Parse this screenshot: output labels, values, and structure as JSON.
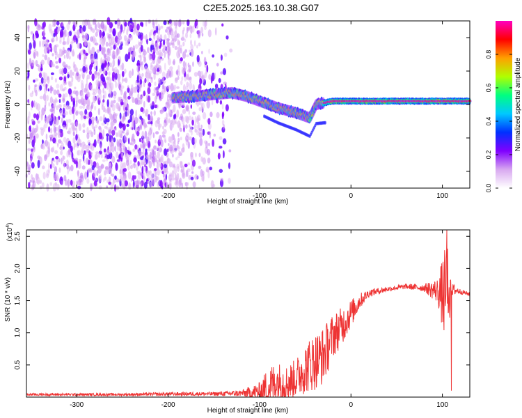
{
  "title": "C2E5.2025.163.10.38.G07",
  "chart_data": [
    {
      "type": "heatmap",
      "xlabel": "Height of straight line (km)",
      "ylabel": "Frequency (Hz)",
      "xlim": [
        -355,
        130
      ],
      "ylim": [
        -50,
        50
      ],
      "xticks": [
        -300,
        -200,
        -100,
        0,
        100
      ],
      "yticks": [
        -40,
        -20,
        0,
        20,
        40
      ],
      "colorbar": {
        "label": "Normalized spectral amplitude",
        "range": [
          0.0,
          1.0
        ],
        "ticks": [
          "0.0",
          "0.2",
          "0.4",
          "0.6",
          "0.8"
        ],
        "tick_values": [
          0.0,
          0.2,
          0.4,
          0.6,
          0.8
        ],
        "colormap": [
          "#ffffff",
          "#d8a8f0",
          "#8000ff",
          "#0030ff",
          "#00c8ff",
          "#00ff80",
          "#b0ff00",
          "#ffa000",
          "#ff0000",
          "#ff00c0"
        ]
      },
      "features": [
        {
          "name": "noise",
          "x_range": [
            -355,
            -150
          ],
          "frequency_range": [
            -50,
            50
          ],
          "amplitude": 0.15
        },
        {
          "name": "signal",
          "points": [
            [
              -195,
              4
            ],
            [
              -170,
              5
            ],
            [
              -150,
              6
            ],
            [
              -130,
              7
            ],
            [
              -115,
              5
            ],
            [
              -100,
              2
            ],
            [
              -80,
              -2
            ],
            [
              -60,
              -5
            ],
            [
              -45,
              -8
            ],
            [
              -38,
              0
            ],
            [
              -20,
              2
            ],
            [
              0,
              2
            ],
            [
              50,
              2
            ],
            [
              100,
              2
            ],
            [
              130,
              2
            ]
          ],
          "amplitude": 0.9
        }
      ]
    },
    {
      "type": "line",
      "xlabel": "Height of straight line (km)",
      "ylabel": "SNR (10 * v/v)",
      "yscale_label": "(x10",
      "yscale_exponent": "4",
      "yscale_suffix": ")",
      "xlim": [
        -355,
        130
      ],
      "ylim": [
        0,
        2.6
      ],
      "xticks": [
        -300,
        -200,
        -100,
        0,
        100
      ],
      "yticks": [
        0.5,
        1.0,
        1.5,
        2.0,
        2.5
      ],
      "ytick_labels": [
        "0.5",
        "1.0",
        "1.5",
        "2.0",
        "2.5"
      ],
      "color": "#ee3333",
      "envelope": {
        "x": [
          -355,
          -250,
          -180,
          -150,
          -120,
          -100,
          -90,
          -80,
          -70,
          -60,
          -50,
          -40,
          -30,
          -20,
          -10,
          0,
          10,
          20,
          40,
          60,
          80,
          95,
          105,
          110,
          120,
          130
        ],
        "y": [
          0.04,
          0.04,
          0.05,
          0.05,
          0.06,
          0.08,
          0.15,
          0.25,
          0.22,
          0.3,
          0.45,
          0.55,
          0.65,
          0.95,
          1.1,
          1.3,
          1.5,
          1.62,
          1.68,
          1.72,
          1.7,
          1.65,
          1.55,
          1.68,
          1.64,
          1.6
        ],
        "amp": [
          0.02,
          0.02,
          0.03,
          0.03,
          0.05,
          0.15,
          0.35,
          0.3,
          0.28,
          0.3,
          0.4,
          0.45,
          0.45,
          0.35,
          0.3,
          0.22,
          0.12,
          0.06,
          0.04,
          0.04,
          0.06,
          0.2,
          0.9,
          0.1,
          0.04,
          0.03
        ]
      }
    }
  ]
}
